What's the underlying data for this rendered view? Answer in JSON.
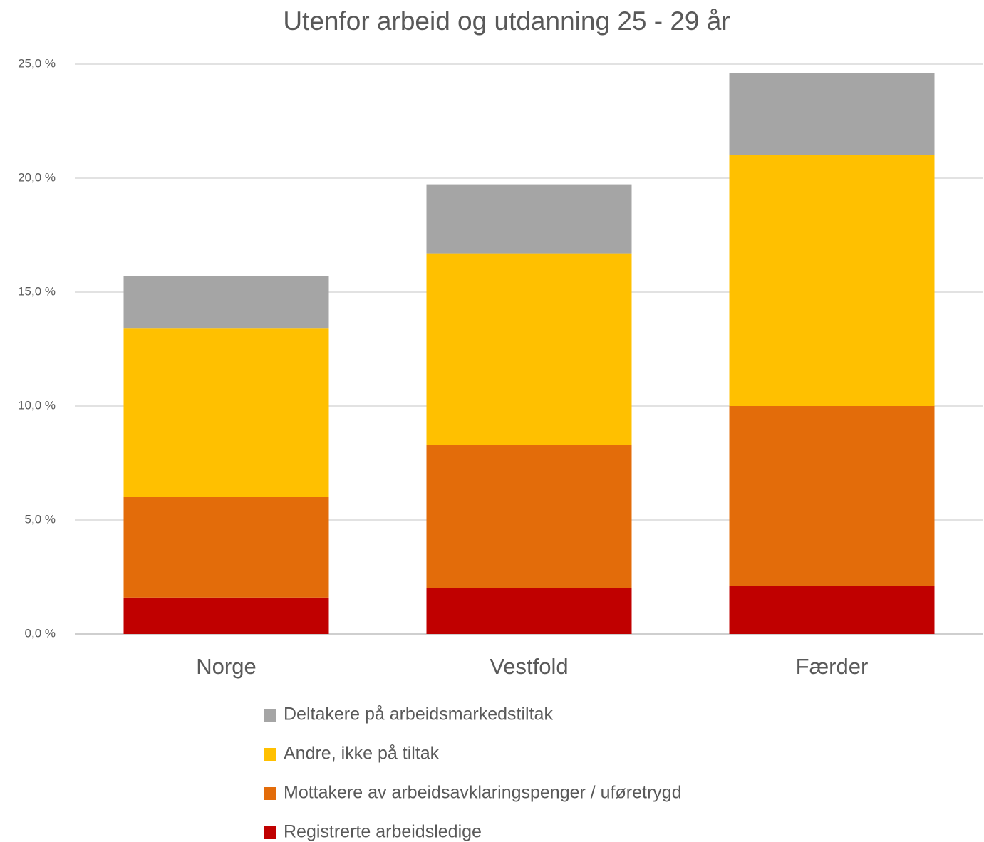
{
  "chart_data": {
    "type": "stacked_bar",
    "title": "Utenfor arbeid og utdanning 25 - 29 år",
    "categories": [
      "Norge",
      "Vestfold",
      "Færder"
    ],
    "series": [
      {
        "name": "Registrerte arbeidsledige",
        "color": "#c00000",
        "values": [
          1.6,
          2.0,
          2.1
        ]
      },
      {
        "name": "Mottakere av arbeidsavklaringspenger / uføretrygd",
        "color": "#e36c0a",
        "values": [
          4.4,
          6.3,
          7.9
        ]
      },
      {
        "name": "Andre, ikke på tiltak",
        "color": "#ffc000",
        "values": [
          7.4,
          8.4,
          11.0
        ]
      },
      {
        "name": "Deltakere på arbeidsmarkedstiltak",
        "color": "#a5a5a5",
        "values": [
          2.3,
          3.0,
          3.6
        ]
      }
    ],
    "ylim": [
      0,
      25
    ],
    "yticks": [
      {
        "value": 0,
        "label": "0,0 %"
      },
      {
        "value": 5,
        "label": "5,0 %"
      },
      {
        "value": 10,
        "label": "10,0 %"
      },
      {
        "value": 15,
        "label": "15,0 %"
      },
      {
        "value": 20,
        "label": "20,0 %"
      },
      {
        "value": 25,
        "label": "25,0 %"
      }
    ],
    "grid": true
  }
}
